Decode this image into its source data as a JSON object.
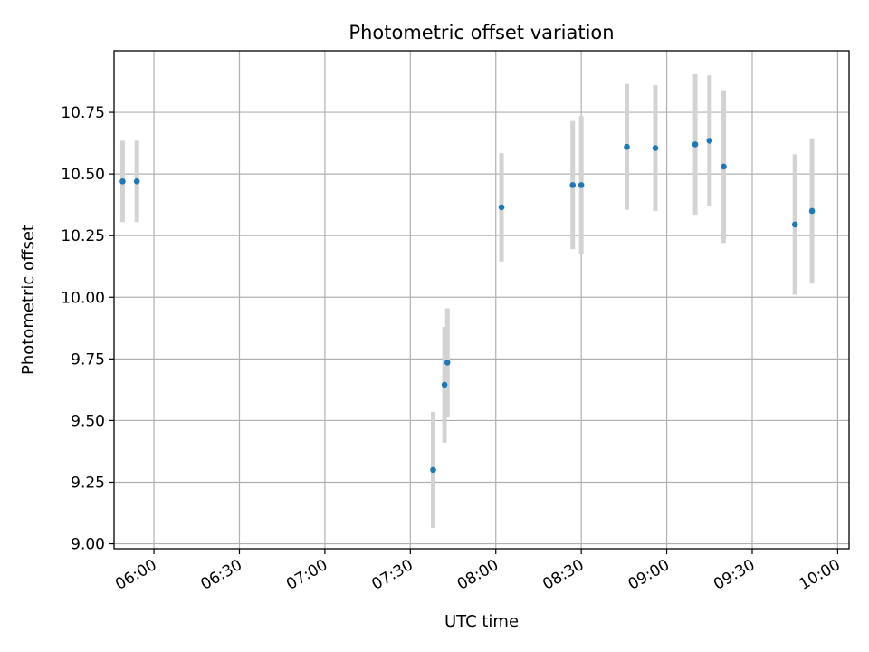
{
  "chart_data": {
    "type": "scatter",
    "title": "Photometric offset variation",
    "xlabel": "UTC time",
    "ylabel": "Photometric offset",
    "x_type": "time",
    "xlim": [
      "05:46",
      "10:04"
    ],
    "ylim": [
      8.98,
      11.0
    ],
    "x_ticks": [
      "06:00",
      "06:30",
      "07:00",
      "07:30",
      "08:00",
      "08:30",
      "09:00",
      "09:30",
      "10:00"
    ],
    "y_ticks": [
      "9.00",
      "9.25",
      "9.50",
      "9.75",
      "10.00",
      "10.25",
      "10.50",
      "10.75"
    ],
    "grid": true,
    "colors": {
      "point": "#1f77b4",
      "errorbar": "#d3d3d3",
      "grid": "#b0b0b0"
    },
    "points": [
      {
        "x": "05:49",
        "y": 10.47,
        "err": 0.165
      },
      {
        "x": "05:54",
        "y": 10.47,
        "err": 0.165
      },
      {
        "x": "07:38",
        "y": 9.3,
        "err": 0.235
      },
      {
        "x": "07:42",
        "y": 9.645,
        "err": 0.235
      },
      {
        "x": "07:43",
        "y": 9.735,
        "err": 0.22
      },
      {
        "x": "08:02",
        "y": 10.365,
        "err": 0.22
      },
      {
        "x": "08:27",
        "y": 10.455,
        "err": 0.26
      },
      {
        "x": "08:30",
        "y": 10.455,
        "err": 0.28
      },
      {
        "x": "08:46",
        "y": 10.61,
        "err": 0.255
      },
      {
        "x": "08:56",
        "y": 10.605,
        "err": 0.255
      },
      {
        "x": "09:10",
        "y": 10.62,
        "err": 0.285
      },
      {
        "x": "09:15",
        "y": 10.635,
        "err": 0.265
      },
      {
        "x": "09:20",
        "y": 10.53,
        "err": 0.31
      },
      {
        "x": "09:45",
        "y": 10.295,
        "err": 0.285
      },
      {
        "x": "09:51",
        "y": 10.35,
        "err": 0.295
      }
    ]
  }
}
